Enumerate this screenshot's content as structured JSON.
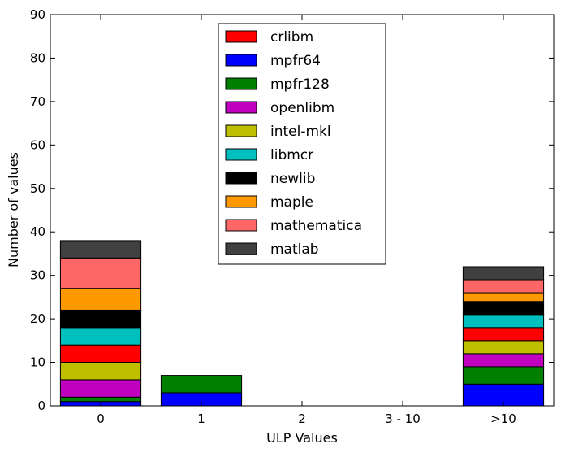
{
  "chart_data": {
    "type": "bar",
    "stacked": true,
    "title": "",
    "xlabel": "ULP Values",
    "ylabel": "Number of values",
    "ylim": [
      0,
      90
    ],
    "yticks": [
      "0",
      "10",
      "20",
      "30",
      "40",
      "50",
      "60",
      "70",
      "80",
      "90"
    ],
    "categories": [
      "0",
      "1",
      "2",
      "3 - 10",
      ">10"
    ],
    "legend_position": "upper-center",
    "grid": false,
    "series": [
      {
        "name": "crlibm",
        "color": "#ff0000",
        "values": [
          4,
          0,
          0,
          0,
          3
        ]
      },
      {
        "name": "mpfr64",
        "color": "#0000ff",
        "values": [
          1,
          3,
          0,
          0,
          5
        ]
      },
      {
        "name": "mpfr128",
        "color": "#008000",
        "values": [
          1,
          4,
          0,
          0,
          4
        ]
      },
      {
        "name": "openlibm",
        "color": "#bf00bf",
        "values": [
          4,
          0,
          0,
          0,
          3
        ]
      },
      {
        "name": "intel-mkl",
        "color": "#bfbf00",
        "values": [
          4,
          0,
          0,
          0,
          3
        ]
      },
      {
        "name": "libmcr",
        "color": "#00bfbf",
        "values": [
          4,
          0,
          0,
          0,
          3
        ]
      },
      {
        "name": "newlib",
        "color": "#000000",
        "values": [
          4,
          0,
          0,
          0,
          3
        ]
      },
      {
        "name": "maple",
        "color": "#ff9900",
        "values": [
          5,
          0,
          0,
          0,
          2
        ]
      },
      {
        "name": "mathematica",
        "color": "#ff6666",
        "values": [
          7,
          0,
          0,
          0,
          3
        ]
      },
      {
        "name": "matlab",
        "color": "#404040",
        "values": [
          4,
          0,
          0,
          0,
          3
        ]
      }
    ],
    "stack_order": [
      "mpfr64",
      "mpfr128",
      "openlibm",
      "intel-mkl",
      "crlibm",
      "libmcr",
      "newlib",
      "maple",
      "mathematica",
      "matlab"
    ]
  }
}
